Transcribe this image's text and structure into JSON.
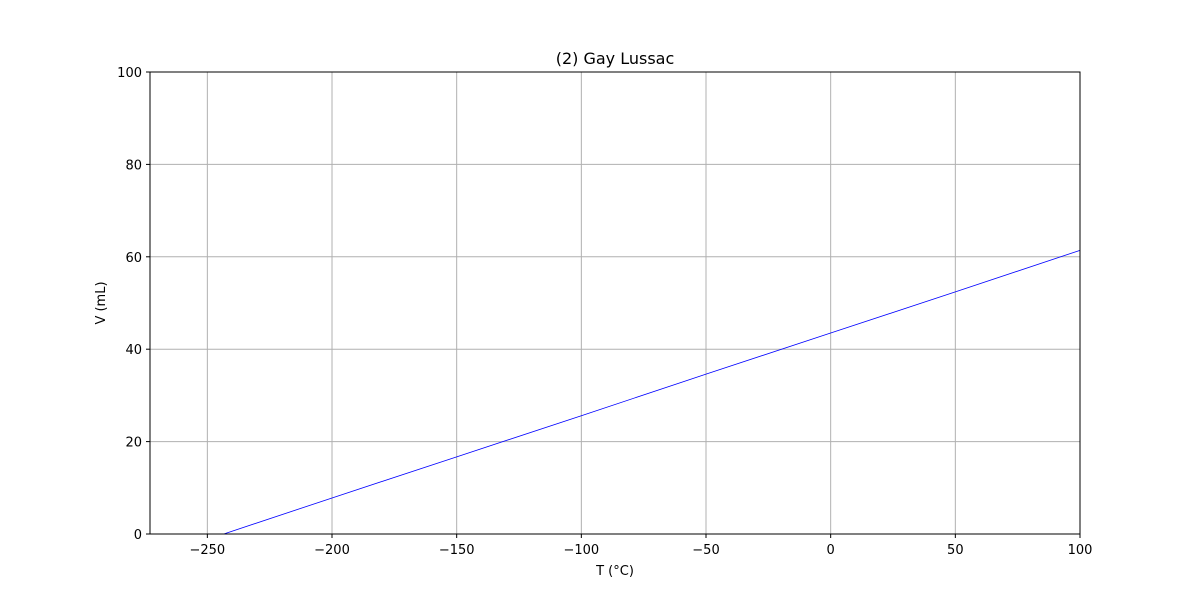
{
  "chart_data": {
    "type": "line",
    "title": "(2) Gay Lussac",
    "xlabel": "T (°C)",
    "ylabel": "V (mL)",
    "xlim": [
      -273,
      100
    ],
    "ylim": [
      0,
      100
    ],
    "x_ticks": [
      -250,
      -200,
      -150,
      -100,
      -50,
      0,
      50,
      100
    ],
    "x_tick_labels": [
      "−250",
      "−200",
      "−150",
      "−100",
      "−50",
      "0",
      "50",
      "100"
    ],
    "y_ticks": [
      0,
      20,
      40,
      60,
      80,
      100
    ],
    "y_tick_labels": [
      "0",
      "20",
      "40",
      "60",
      "80",
      "100"
    ],
    "grid": true,
    "series": [
      {
        "color": "#0000ff",
        "x": [
          -243.4,
          -200,
          -150,
          -100,
          -50,
          0,
          50,
          100
        ],
        "y": [
          0,
          7.8,
          16.7,
          25.6,
          34.6,
          43.5,
          52.4,
          61.4
        ]
      }
    ]
  }
}
